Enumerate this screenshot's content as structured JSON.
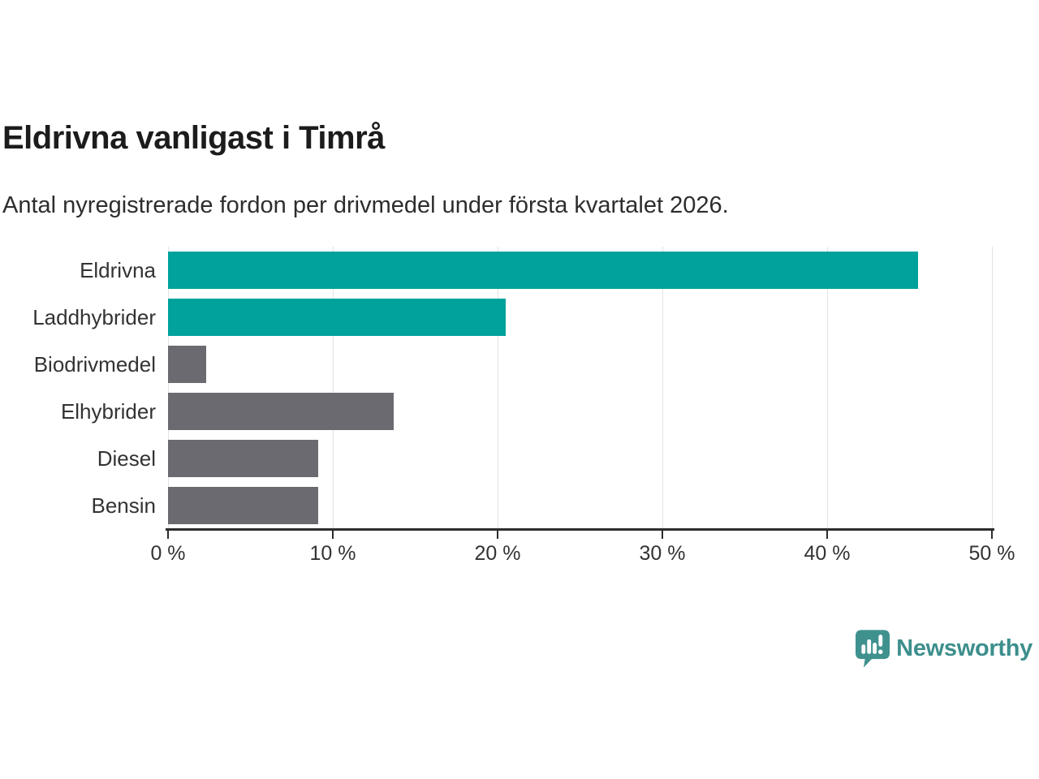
{
  "header": {
    "title": "Eldrivna vanligast i Timrå",
    "subtitle": "Antal nyregistrerade fordon per drivmedel under första kvartalet 2026."
  },
  "colors": {
    "accent_teal": "#00a29b",
    "bar_gray": "#6b6a70",
    "axis": "#2d2d2d",
    "gridline": "#e3e3e3",
    "logo_teal": "#3f918e",
    "logo_text": "#3c8f8c"
  },
  "chart_data": {
    "type": "bar",
    "orientation": "horizontal",
    "title": "Eldrivna vanligast i Timrå",
    "subtitle": "Antal nyregistrerade fordon per drivmedel under första kvartalet 2026.",
    "categories": [
      "Eldrivna",
      "Laddhybrider",
      "Biodrivmedel",
      "Elhybrider",
      "Diesel",
      "Bensin"
    ],
    "values": [
      45.5,
      20.5,
      2.3,
      13.7,
      9.1,
      9.1
    ],
    "unit": "%",
    "bar_color_roles": [
      "teal",
      "teal",
      "gray",
      "gray",
      "gray",
      "gray"
    ],
    "xlim": [
      0,
      50
    ],
    "x_ticks": [
      0,
      10,
      20,
      30,
      40,
      50
    ],
    "x_tick_labels": [
      "0 %",
      "10 %",
      "20 %",
      "30 %",
      "40 %",
      "50 %"
    ],
    "grid": true,
    "legend": "none"
  },
  "branding": {
    "logo_text": "Newsworthy",
    "logo_icon": "bar-chart-speech-bubble"
  }
}
